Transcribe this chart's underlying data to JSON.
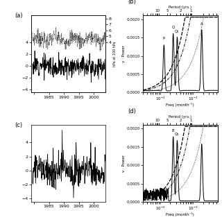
{
  "panel_labels": [
    "(a)",
    "(b)",
    "(c)",
    "(d)"
  ],
  "freq_xlabel": "Freq (month⁻¹)",
  "freq_ylabel_b": "v · Power",
  "freq_ylabel_b2": "hPa at 100 hPa",
  "period_xlabel": "Period (yrs.)",
  "freq_xlim": [
    0.003,
    0.55
  ],
  "freq_ylim": [
    0.0,
    0.0021
  ],
  "time_xlim": [
    1979.0,
    2004.0
  ],
  "time_ylim_a": [
    -4.5,
    8.5
  ],
  "time_ylim_c": [
    -4.5,
    6.5
  ],
  "background_color": "#ffffff",
  "n_time": 300,
  "seed_a_solid": 12,
  "seed_a_dot": 7,
  "seed_c": 55
}
